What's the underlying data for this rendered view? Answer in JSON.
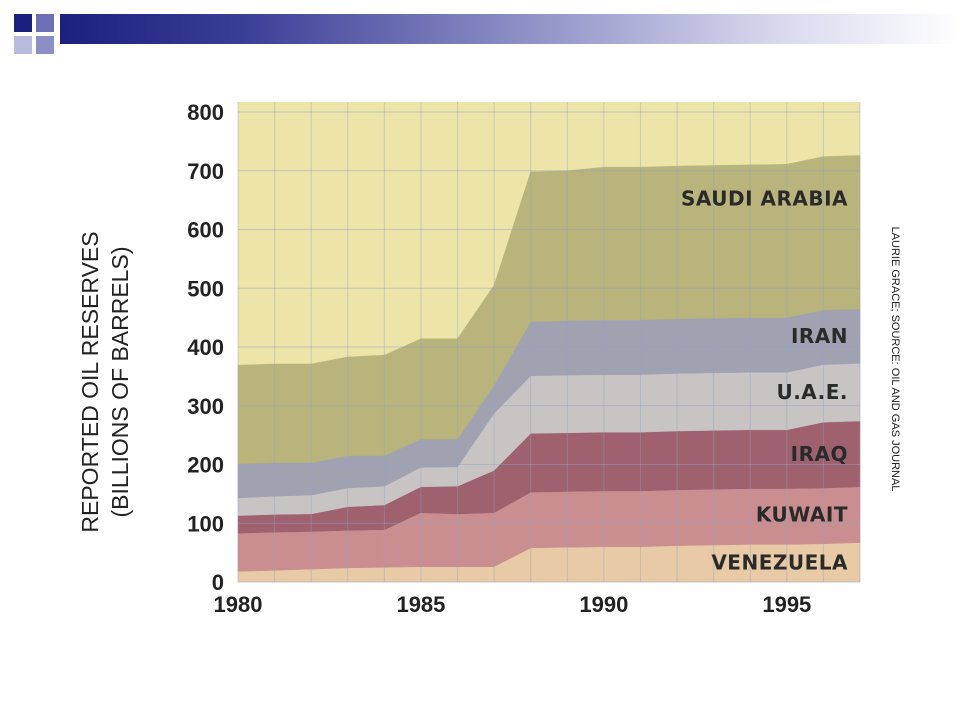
{
  "slide": {
    "colors": {
      "dark": "#1d1f7e",
      "mid": "#6e70b5",
      "light": "#b8bade"
    }
  },
  "chart_data": {
    "type": "area",
    "stacked": true,
    "ylabel_line1": "REPORTED OIL RESERVES",
    "ylabel_line2": "(BILLIONS OF BARRELS)",
    "source": "LAURIE GRACE; SOURCE: OIL AND GAS JOURNAL",
    "ylim": [
      0,
      800
    ],
    "xlim": [
      1980,
      1997
    ],
    "y_ticks": [
      0,
      100,
      200,
      300,
      400,
      500,
      600,
      700,
      800
    ],
    "x_ticks": [
      1980,
      1985,
      1990,
      1995
    ],
    "grid": true,
    "x": [
      1980,
      1981,
      1982,
      1983,
      1984,
      1985,
      1986,
      1987,
      1988,
      1989,
      1990,
      1991,
      1992,
      1993,
      1994,
      1995,
      1996,
      1997
    ],
    "series": [
      {
        "name": "VENEZUELA",
        "color": "#e8c9a6",
        "values": [
          18,
          20,
          22,
          24,
          25,
          26,
          26,
          26,
          58,
          59,
          60,
          60,
          62,
          63,
          64,
          64,
          65,
          67
        ]
      },
      {
        "name": "KUWAIT",
        "color": "#c98a8f",
        "values": [
          65,
          65,
          64,
          64,
          64,
          92,
          90,
          92,
          95,
          95,
          95,
          95,
          95,
          95,
          95,
          95,
          95,
          95
        ]
      },
      {
        "name": "IRAQ",
        "color": "#9a5a6a",
        "values": [
          30,
          30,
          30,
          40,
          42,
          44,
          47,
          72,
          100,
          100,
          100,
          100,
          100,
          100,
          100,
          100,
          112,
          112
        ]
      },
      {
        "name": "U.A.E.",
        "color": "#c7c3c6",
        "values": [
          30,
          31,
          32,
          32,
          32,
          33,
          33,
          97,
          98,
          98,
          98,
          98,
          98,
          98,
          98,
          98,
          98,
          98
        ]
      },
      {
        "name": "IRAN",
        "color": "#9e9fb2",
        "values": [
          58,
          57,
          55,
          55,
          52,
          48,
          47,
          48,
          92,
          93,
          93,
          93,
          93,
          93,
          93,
          93,
          93,
          93
        ]
      },
      {
        "name": "SAUDI ARABIA",
        "color": "#b6b27a",
        "values": [
          168,
          168,
          168,
          168,
          171,
          171,
          171,
          170,
          255,
          255,
          260,
          260,
          260,
          260,
          260,
          261,
          261,
          261
        ]
      }
    ]
  }
}
